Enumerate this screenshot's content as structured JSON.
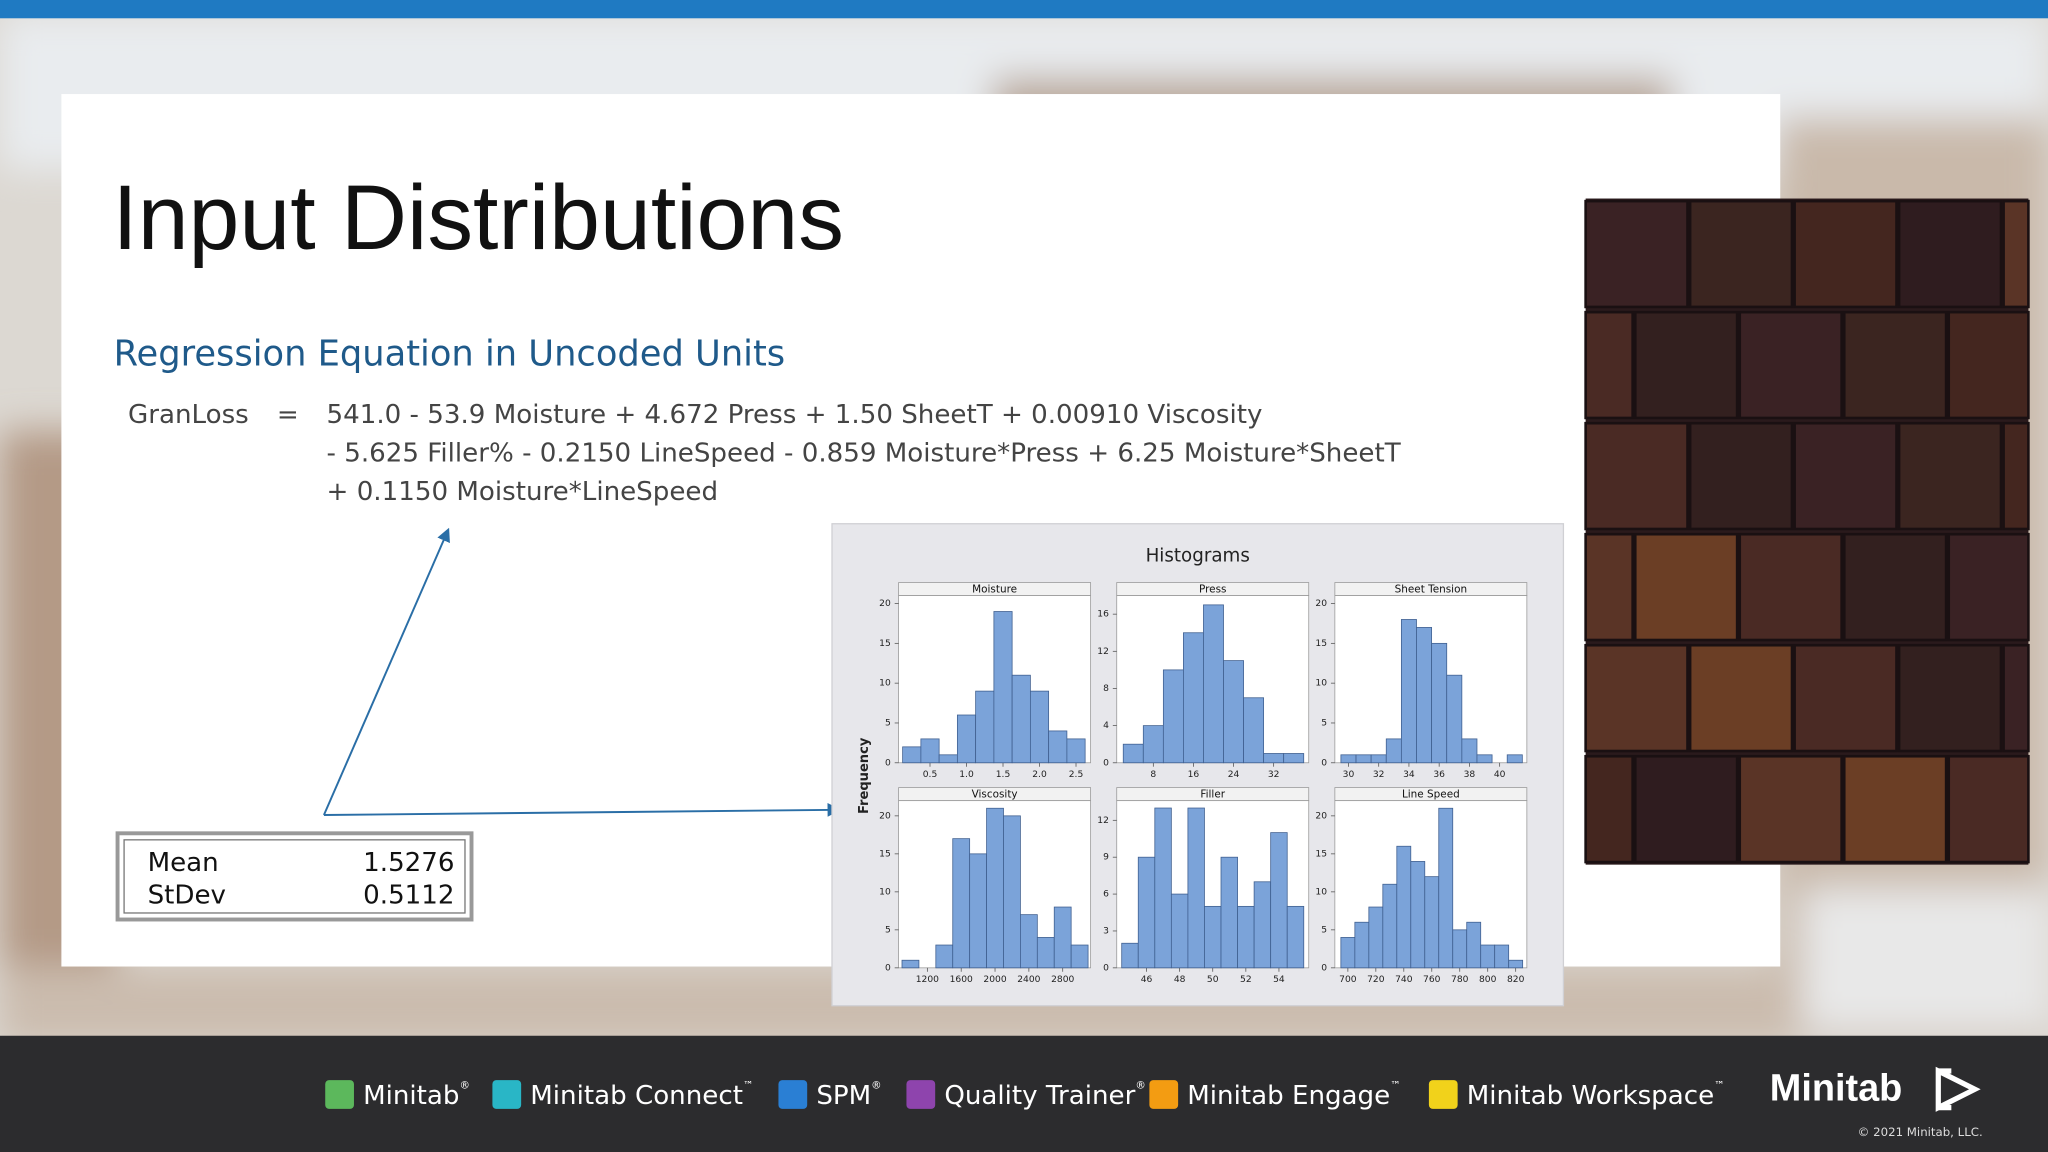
{
  "slide": {
    "title": "Input Distributions"
  },
  "regression": {
    "heading": "Regression Equation in Uncoded Units",
    "response": "GranLoss",
    "equals": "=",
    "lines": [
      "541.0 - 53.9 Moisture + 4.672 Press + 1.50 SheetT + 0.00910 Viscosity",
      "- 5.625 Filler% - 0.2150 LineSpeed - 0.859 Moisture*Press + 6.25 Moisture*SheetT",
      "+ 0.1150 Moisture*LineSpeed"
    ]
  },
  "stats": {
    "rows": [
      [
        "Mean",
        "1.5276"
      ],
      [
        "StDev",
        "0.5112"
      ]
    ]
  },
  "panel": {
    "title": "Histograms",
    "ylabel": "Frequency"
  },
  "chart_data": [
    {
      "type": "histogram",
      "title": "Moisture",
      "color": "#7ba3d9",
      "bins": [
        0.125,
        0.375,
        0.625,
        0.875,
        1.125,
        1.375,
        1.625,
        1.875,
        2.125,
        2.375,
        2.625
      ],
      "counts": [
        2,
        3,
        1,
        6,
        9,
        19,
        11,
        9,
        4,
        3
      ],
      "xlim": [
        0.07,
        2.7
      ],
      "xticks": [
        0.5,
        {
          "value": 1,
          "label": "1.0"
        },
        1.5,
        {
          "value": 2,
          "label": "2.0"
        },
        2.5
      ],
      "ylim": [
        0,
        21
      ],
      "yticks": [
        0,
        5,
        10,
        15,
        20
      ]
    },
    {
      "type": "histogram",
      "title": "Press",
      "color": "#7ba3d9",
      "bins": [
        2,
        6,
        10,
        14,
        18,
        22,
        26,
        30,
        34,
        38
      ],
      "counts": [
        2,
        4,
        10,
        14,
        17,
        11,
        7,
        1,
        1
      ],
      "xlim": [
        0.7,
        39
      ],
      "xticks": [
        8,
        16,
        24,
        32
      ],
      "ylim": [
        0,
        18
      ],
      "yticks": [
        0,
        4,
        8,
        12,
        16
      ]
    },
    {
      "type": "histogram",
      "title": "Sheet Tension",
      "color": "#7ba3d9",
      "bins": [
        29.5,
        30.5,
        31.5,
        32.5,
        33.5,
        34.5,
        35.5,
        36.5,
        37.5,
        38.5,
        39.5,
        40.5,
        41.5
      ],
      "counts": [
        1,
        1,
        1,
        3,
        18,
        17,
        15,
        11,
        3,
        1,
        0,
        1
      ],
      "xlim": [
        29.1,
        41.8
      ],
      "xticks": [
        30,
        32,
        34,
        36,
        38,
        40
      ],
      "ylim": [
        0,
        21
      ],
      "yticks": [
        0,
        5,
        10,
        15,
        20
      ]
    },
    {
      "type": "histogram",
      "title": "Viscosity",
      "color": "#7ba3d9",
      "bins": [
        900,
        1100,
        1300,
        1500,
        1700,
        1900,
        2100,
        2300,
        2500,
        2700,
        2900,
        3100
      ],
      "counts": [
        1,
        0,
        3,
        17,
        15,
        21,
        20,
        7,
        4,
        8,
        3
      ],
      "xlim": [
        860,
        3130
      ],
      "xticks": [
        1200,
        1600,
        2000,
        2400,
        2800
      ],
      "ylim": [
        0,
        22
      ],
      "yticks": [
        0,
        5,
        10,
        15,
        20
      ]
    },
    {
      "type": "histogram",
      "title": "Filler",
      "color": "#7ba3d9",
      "bins": [
        44.5,
        45.5,
        46.5,
        47.5,
        48.5,
        49.5,
        50.5,
        51.5,
        52.5,
        53.5,
        54.5,
        55.5
      ],
      "counts": [
        2,
        9,
        13,
        6,
        13,
        5,
        9,
        5,
        7,
        11,
        5
      ],
      "xlim": [
        44.2,
        55.8
      ],
      "xticks": [
        46,
        48,
        50,
        52,
        54
      ],
      "ylim": [
        0,
        13.6
      ],
      "yticks": [
        0,
        3,
        6,
        9,
        12
      ]
    },
    {
      "type": "histogram",
      "title": "Line Speed",
      "color": "#7ba3d9",
      "bins": [
        695,
        705,
        715,
        725,
        735,
        745,
        755,
        765,
        775,
        785,
        795,
        805,
        815,
        825
      ],
      "counts": [
        4,
        6,
        8,
        11,
        16,
        14,
        12,
        21,
        5,
        6,
        3,
        3,
        1
      ],
      "xlim": [
        690.7,
        828
      ],
      "xticks": [
        700,
        720,
        740,
        760,
        780,
        800,
        820
      ],
      "ylim": [
        0,
        22
      ],
      "yticks": [
        0,
        5,
        10,
        15,
        20
      ]
    }
  ],
  "footer": {
    "products": [
      {
        "name": "Minitab",
        "mark": "®",
        "color": "#5cb85c"
      },
      {
        "name": "Minitab Connect",
        "mark": "™",
        "color": "#29b6c6"
      },
      {
        "name": "SPM",
        "mark": "®",
        "color": "#2a7fd4"
      },
      {
        "name": "Quality Trainer",
        "mark": "®",
        "color": "#8e44ad"
      },
      {
        "name": "Minitab Engage",
        "mark": "™",
        "color": "#f39c12"
      },
      {
        "name": "Minitab Workspace",
        "mark": "™",
        "color": "#f1d21b"
      }
    ],
    "brand": "Minitab",
    "copyright": "© 2021 Minitab, LLC."
  }
}
